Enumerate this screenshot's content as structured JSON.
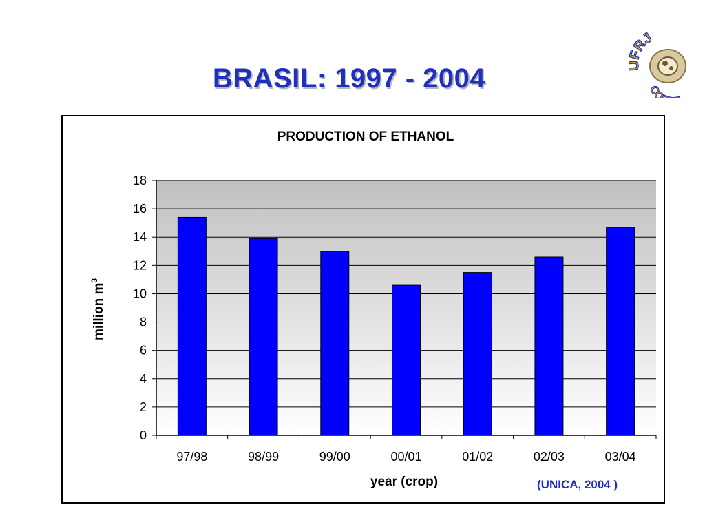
{
  "slide": {
    "title": "BRASIL: 1997 - 2004",
    "source": "(UNICA, 2004 )",
    "logo_text_top": "UFRJ",
    "logo_text_bottom": "COPPE"
  },
  "colors": {
    "title": "#1f2fbf",
    "bar": "#0000ff",
    "plot_bg_top": "#c0c0c0",
    "plot_bg_bottom": "#ffffff"
  },
  "chart_data": {
    "type": "bar",
    "title": "PRODUCTION OF ETHANOL",
    "xlabel": "year (crop)",
    "ylabel": "million m",
    "ylabel_superscript": "3",
    "categories": [
      "97/98",
      "98/99",
      "99/00",
      "00/01",
      "01/02",
      "02/03",
      "03/04"
    ],
    "values": [
      15.4,
      13.9,
      13.0,
      10.6,
      11.5,
      12.6,
      14.7
    ],
    "ylim": [
      0,
      18
    ],
    "yticks": [
      0,
      2,
      4,
      6,
      8,
      10,
      12,
      14,
      16,
      18
    ],
    "grid": true,
    "legend": "none"
  }
}
